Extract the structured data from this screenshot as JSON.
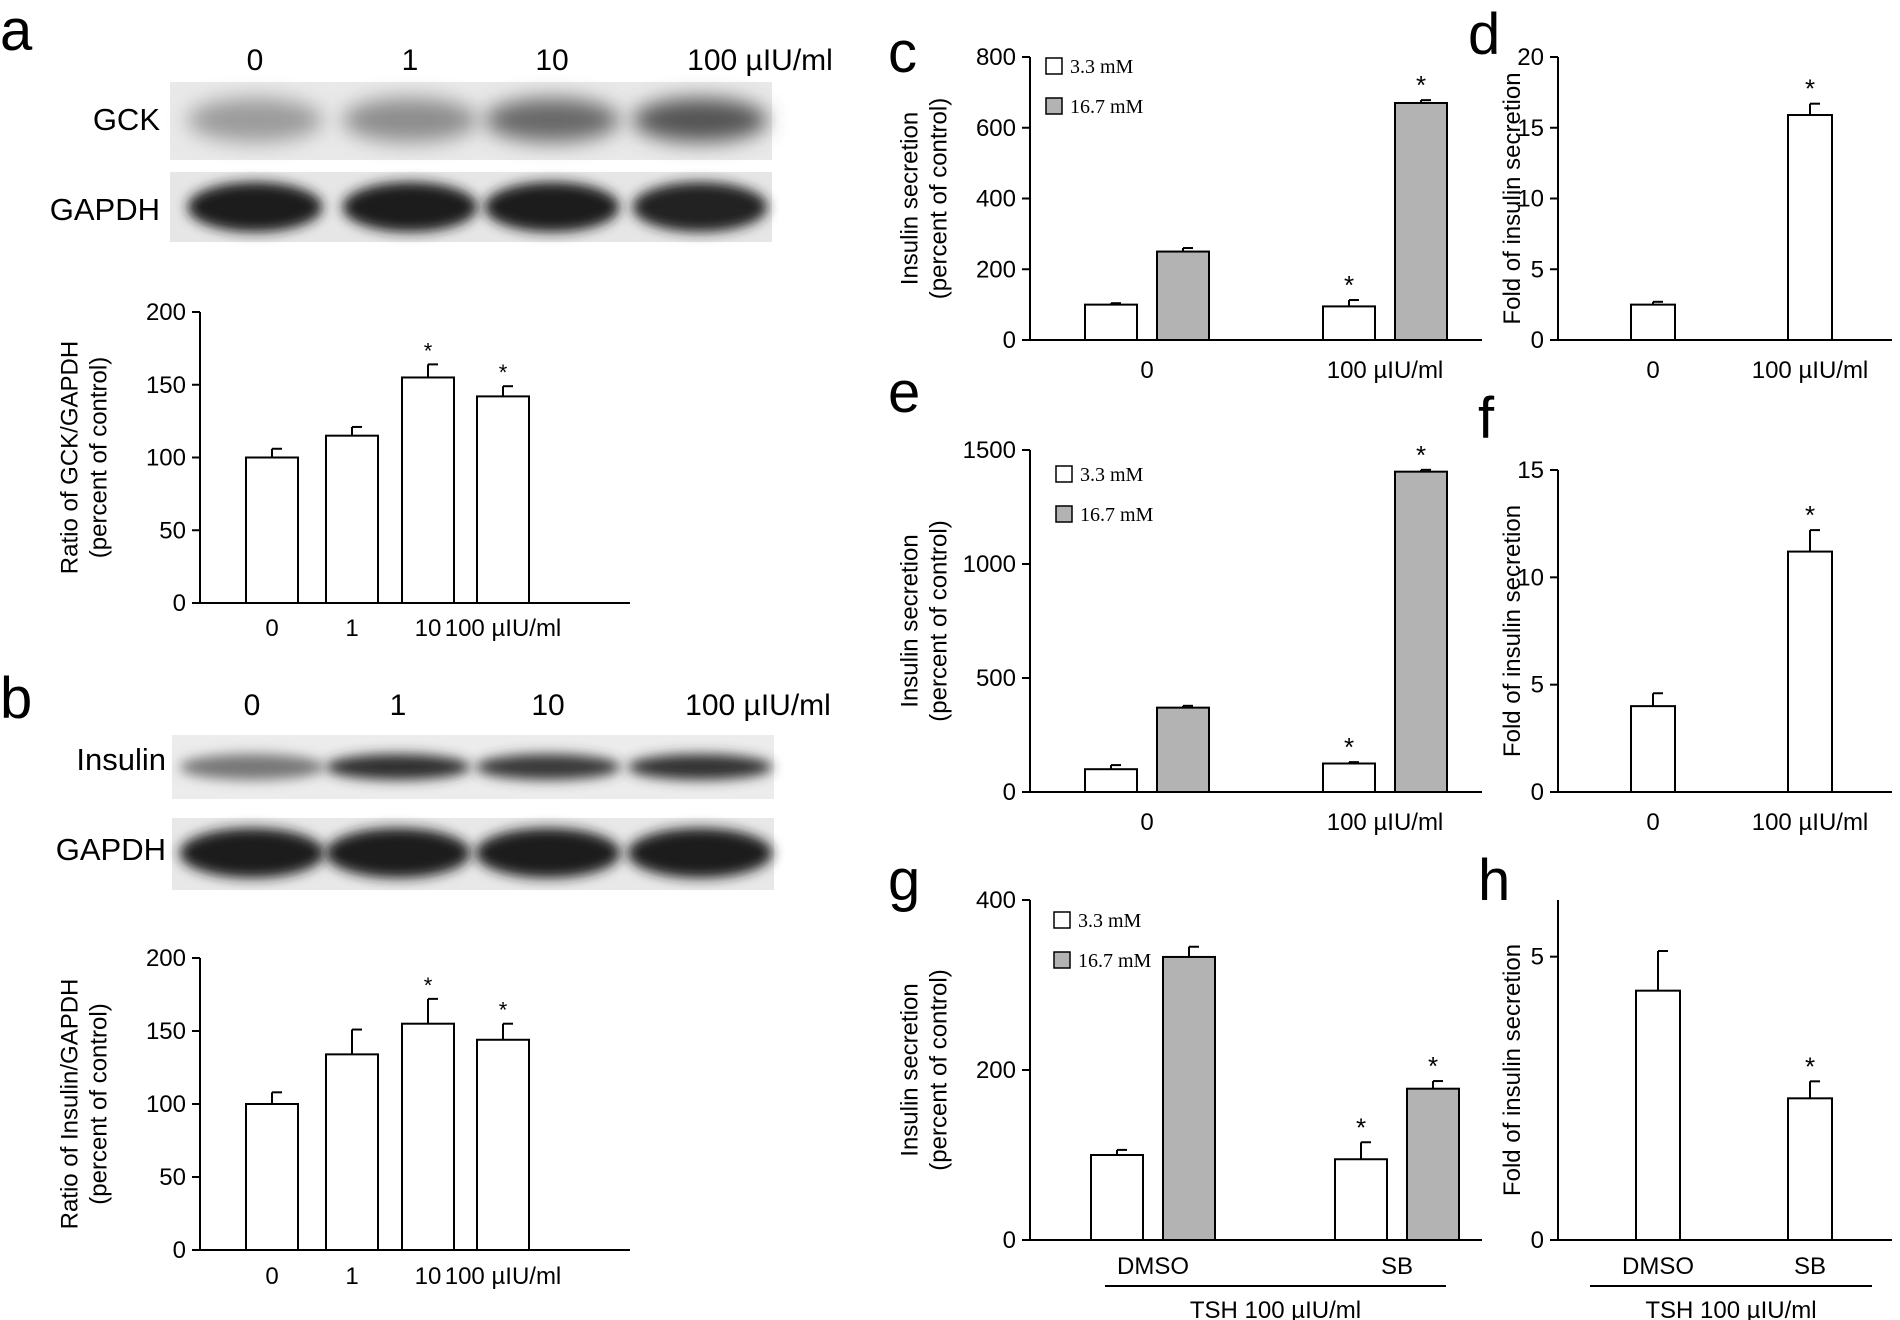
{
  "panel_letters": [
    "a",
    "b",
    "c",
    "d",
    "e",
    "f",
    "g",
    "h"
  ],
  "blots": [
    {
      "panel": "a",
      "lane_labels": [
        "0",
        "1",
        "10",
        "100 µIU/ml"
      ],
      "bands": [
        {
          "label": "GCK",
          "intensity": [
            0.38,
            0.45,
            0.62,
            0.72
          ],
          "shape": "diffuse"
        },
        {
          "label": "GAPDH",
          "intensity": [
            0.97,
            0.97,
            0.97,
            0.95
          ],
          "shape": "solid"
        }
      ]
    },
    {
      "panel": "b",
      "lane_labels": [
        "0",
        "1",
        "10",
        "100 µIU/ml"
      ],
      "bands": [
        {
          "label": "Insulin",
          "intensity": [
            0.55,
            0.9,
            0.85,
            0.88
          ],
          "shape": "thin"
        },
        {
          "label": "GAPDH",
          "intensity": [
            0.97,
            0.99,
            0.99,
            0.97
          ],
          "shape": "solid"
        }
      ]
    }
  ],
  "chart_data": [
    {
      "panel": "a",
      "type": "bar",
      "ylabel": [
        "Ratio of GCK/GAPDH",
        "(percent of control)"
      ],
      "categories": [
        "0",
        "1",
        "10",
        "100 µIU/ml"
      ],
      "ylim": [
        0,
        200
      ],
      "yticks": [
        0,
        50,
        100,
        150,
        200
      ],
      "series": [
        {
          "values": [
            100,
            115,
            155,
            142
          ],
          "errors": [
            6,
            6,
            9,
            7
          ],
          "fill": "#ffffff"
        }
      ],
      "significance": [
        false,
        false,
        true,
        true
      ],
      "legend": []
    },
    {
      "panel": "b",
      "type": "bar",
      "ylabel": [
        "Ratio of Insulin/GAPDH",
        "(percent of control)"
      ],
      "categories": [
        "0",
        "1",
        "10",
        "100 µIU/ml"
      ],
      "ylim": [
        0,
        200
      ],
      "yticks": [
        0,
        50,
        100,
        150,
        200
      ],
      "series": [
        {
          "values": [
            100,
            134,
            155,
            144
          ],
          "errors": [
            8,
            17,
            17,
            11
          ],
          "fill": "#ffffff"
        }
      ],
      "significance": [
        false,
        false,
        true,
        true
      ],
      "legend": []
    },
    {
      "panel": "c",
      "type": "bar",
      "ylabel": [
        "Insulin secretion",
        "(percent of control)"
      ],
      "categories": [
        "0",
        "100 µIU/ml"
      ],
      "ylim": [
        0,
        800
      ],
      "yticks": [
        0,
        200,
        400,
        600,
        800
      ],
      "series": [
        {
          "name": "3.3 mM",
          "values": [
            100,
            95
          ],
          "errors": [
            4,
            18
          ],
          "fill": "#ffffff"
        },
        {
          "name": "16.7 mM",
          "values": [
            250,
            670
          ],
          "errors": [
            10,
            8
          ],
          "fill": "#b3b3b3"
        }
      ],
      "significance": [
        [
          false,
          true
        ],
        [
          false,
          true
        ]
      ],
      "legend": [
        "3.3 mM",
        "16.7 mM"
      ]
    },
    {
      "panel": "d",
      "type": "bar",
      "ylabel": [
        "Fold of insulin secretion"
      ],
      "categories": [
        "0",
        "100 µIU/ml"
      ],
      "ylim": [
        0,
        20
      ],
      "yticks": [
        0,
        5,
        10,
        15,
        20
      ],
      "series": [
        {
          "values": [
            2.5,
            15.9
          ],
          "errors": [
            0.2,
            0.8
          ],
          "fill": "#ffffff"
        }
      ],
      "significance": [
        false,
        true
      ],
      "legend": []
    },
    {
      "panel": "e",
      "type": "bar",
      "ylabel": [
        "Insulin secretion",
        "(percent of control)"
      ],
      "categories": [
        "0",
        "100 µIU/ml"
      ],
      "ylim": [
        0,
        1500
      ],
      "yticks": [
        0,
        500,
        1000,
        1500
      ],
      "series": [
        {
          "name": "3.3 mM",
          "values": [
            100,
            125
          ],
          "errors": [
            18,
            6
          ],
          "fill": "#ffffff"
        },
        {
          "name": "16.7 mM",
          "values": [
            370,
            1405
          ],
          "errors": [
            8,
            8
          ],
          "fill": "#b3b3b3"
        }
      ],
      "significance": [
        [
          false,
          true
        ],
        [
          false,
          true
        ]
      ],
      "legend": [
        "3.3 mM",
        "16.7 mM"
      ]
    },
    {
      "panel": "f",
      "type": "bar",
      "ylabel": [
        "Fold of insulin secretion"
      ],
      "categories": [
        "0",
        "100 µIU/ml"
      ],
      "ylim": [
        0,
        15
      ],
      "yticks": [
        0,
        5,
        10,
        15
      ],
      "series": [
        {
          "values": [
            4.0,
            11.2
          ],
          "errors": [
            0.6,
            1.0
          ],
          "fill": "#ffffff"
        }
      ],
      "significance": [
        false,
        true
      ],
      "legend": []
    },
    {
      "panel": "g",
      "type": "bar",
      "ylabel": [
        "Insulin secretion",
        "(percent of control)"
      ],
      "categories": [
        "DMSO",
        "SB"
      ],
      "group_label": "TSH 100 µIU/ml",
      "ylim": [
        0,
        400
      ],
      "yticks": [
        0,
        200,
        400
      ],
      "series": [
        {
          "name": "3.3 mM",
          "values": [
            100,
            95
          ],
          "errors": [
            6,
            20
          ],
          "fill": "#ffffff"
        },
        {
          "name": "16.7 mM",
          "values": [
            333,
            178
          ],
          "errors": [
            12,
            9
          ],
          "fill": "#b3b3b3"
        }
      ],
      "significance": [
        [
          false,
          true
        ],
        [
          false,
          true
        ]
      ],
      "legend": [
        "3.3 mM",
        "16.7 mM"
      ]
    },
    {
      "panel": "h",
      "type": "bar",
      "ylabel": [
        "Fold of insulin secretion"
      ],
      "categories": [
        "DMSO",
        "SB"
      ],
      "group_label": "TSH 100 µIU/ml",
      "ylim": [
        0,
        6
      ],
      "yticks": [
        0,
        5
      ],
      "series": [
        {
          "values": [
            4.4,
            2.5
          ],
          "errors": [
            0.7,
            0.3
          ],
          "fill": "#ffffff"
        }
      ],
      "significance": [
        false,
        true
      ],
      "legend": []
    }
  ]
}
